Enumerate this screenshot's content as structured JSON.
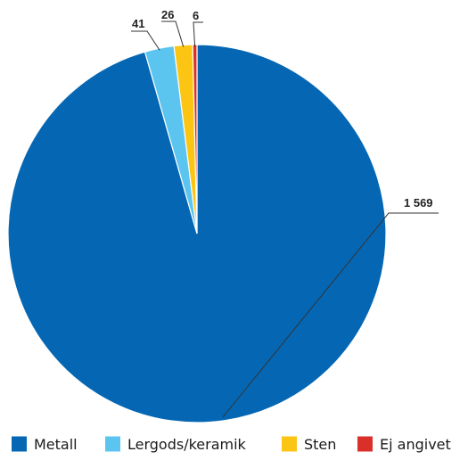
{
  "chart_data": {
    "type": "pie",
    "categories": [
      "Metall",
      "Lergods/keramik",
      "Sten",
      "Ej angivet"
    ],
    "values": [
      1569,
      41,
      26,
      6
    ],
    "value_labels": [
      "1 569",
      "41",
      "26",
      "6"
    ],
    "colors": [
      "#0567b3",
      "#5bc5ef",
      "#fcc514",
      "#d9312a"
    ],
    "legend_placement": "bottom",
    "title": ""
  }
}
